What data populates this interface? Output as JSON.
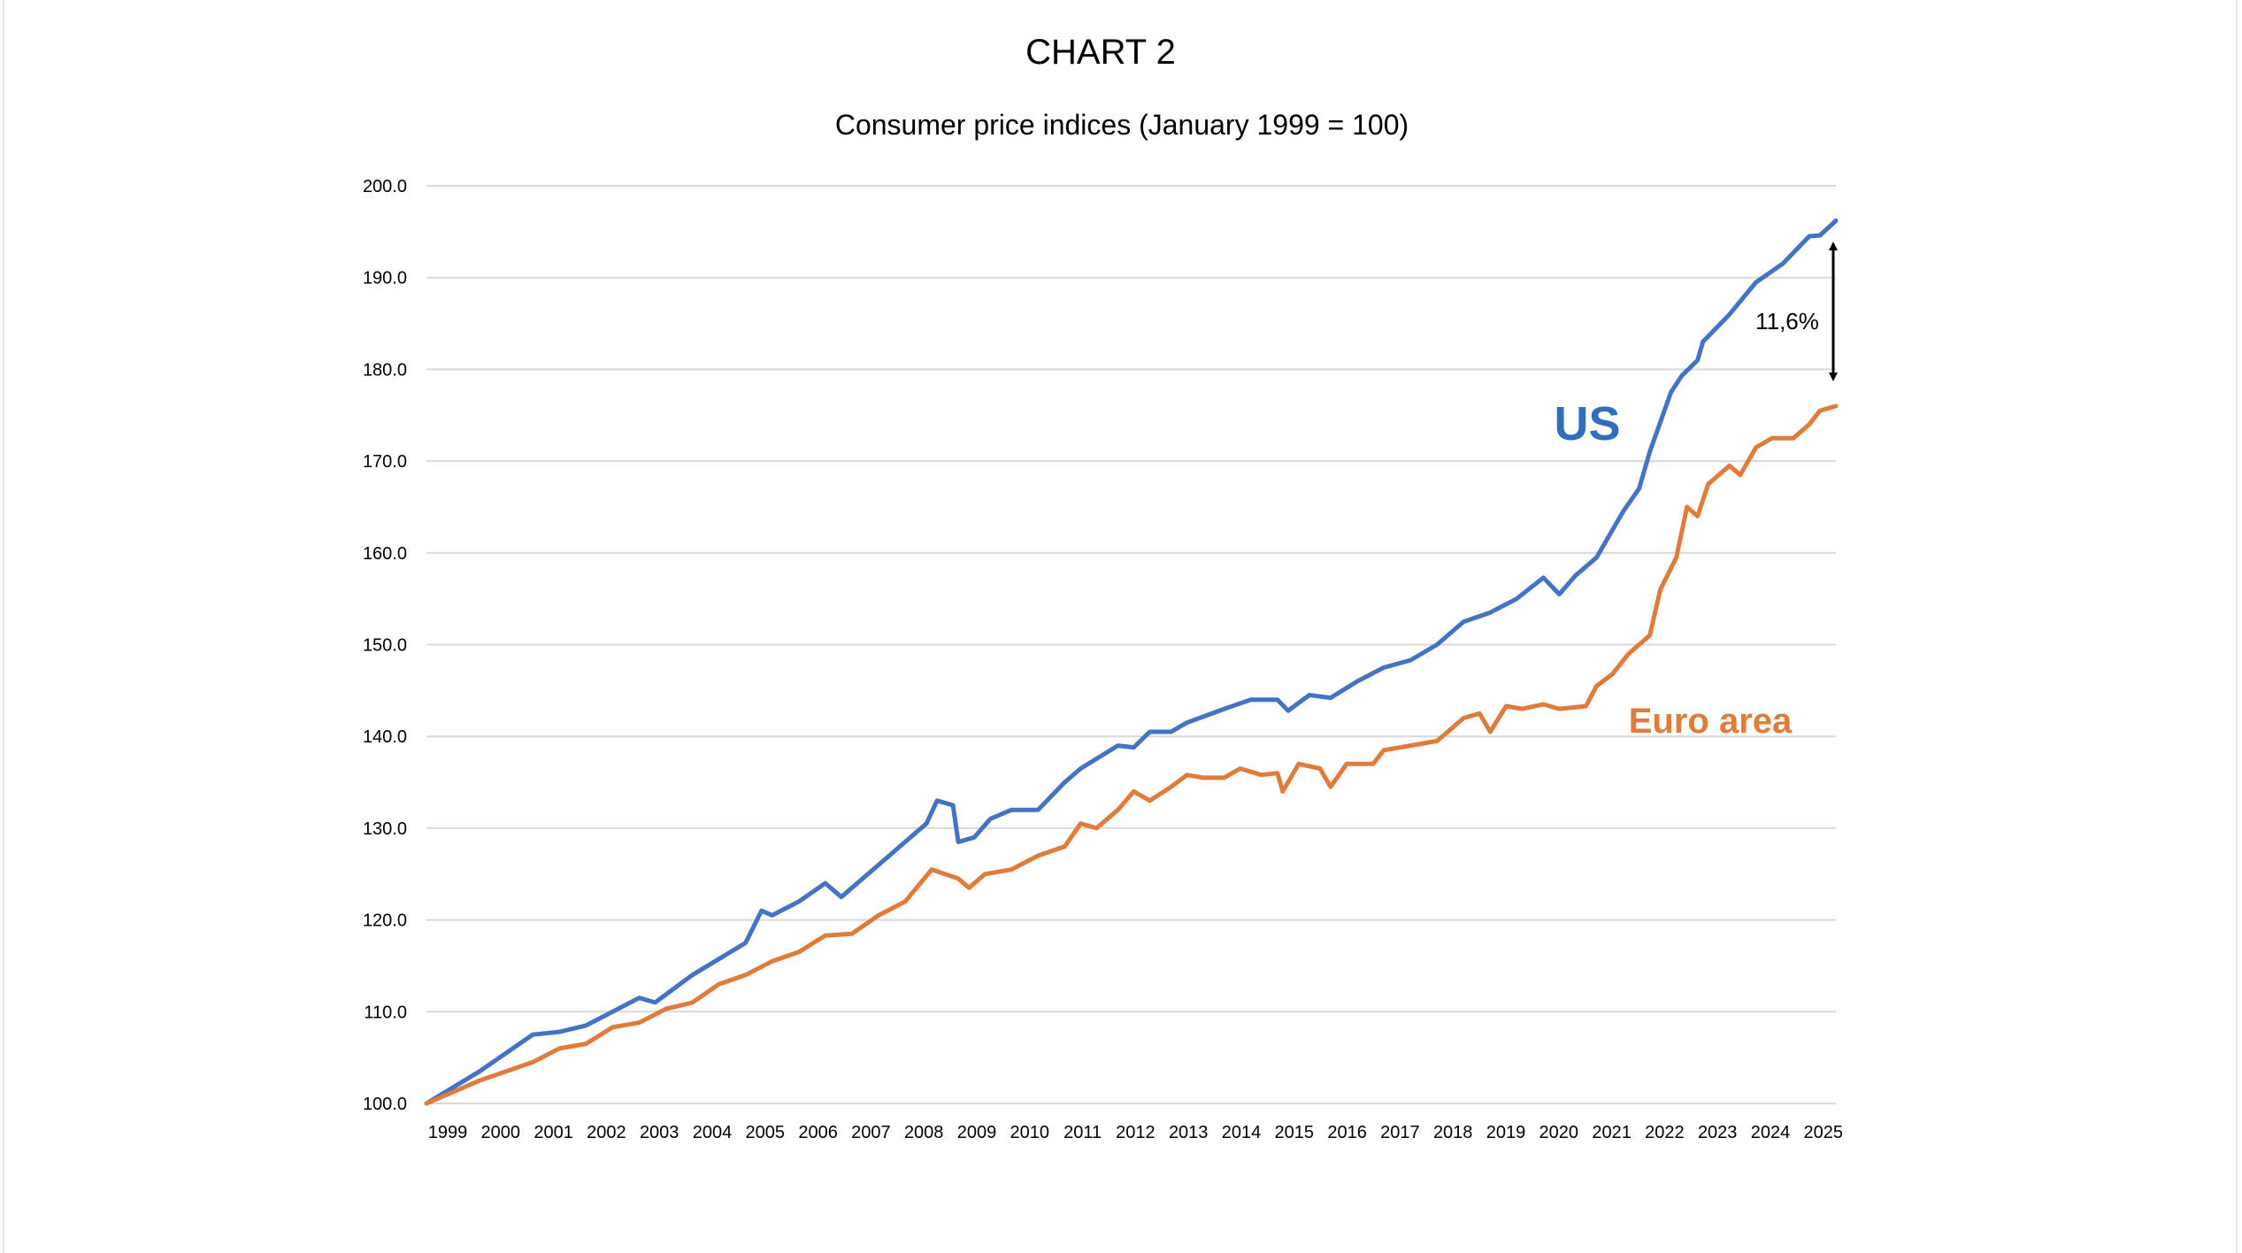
{
  "chart_data": {
    "type": "line",
    "title": "CHART 2",
    "subtitle": "Consumer price indices (January 1999 = 100)",
    "xlabel": "",
    "ylabel": "",
    "ylim": [
      100,
      200
    ],
    "xlim": [
      1999,
      2025.5
    ],
    "y_ticks": [
      "100.0",
      "110.0",
      "120.0",
      "130.0",
      "140.0",
      "150.0",
      "160.0",
      "170.0",
      "180.0",
      "190.0",
      "200.0"
    ],
    "x_ticks": [
      "1999",
      "2000",
      "2001",
      "2002",
      "2003",
      "2004",
      "2005",
      "2006",
      "2007",
      "2008",
      "2009",
      "2010",
      "2011",
      "2012",
      "2013",
      "2014",
      "2015",
      "2016",
      "2017",
      "2018",
      "2019",
      "2020",
      "2021",
      "2022",
      "2023",
      "2024",
      "2025"
    ],
    "grid": true,
    "legend": "inline labels",
    "series": [
      {
        "name": "US",
        "color": "#4472C4",
        "x": [
          1999,
          2000,
          2001,
          2001.5,
          2002,
          2003,
          2003.3,
          2004,
          2005,
          2005.3,
          2005.5,
          2006,
          2006.5,
          2006.8,
          2007,
          2007.5,
          2008,
          2008.4,
          2008.6,
          2008.9,
          2009,
          2009.3,
          2009.6,
          2010,
          2010.5,
          2011,
          2011.3,
          2012,
          2012.3,
          2012.6,
          2013,
          2013.3,
          2014,
          2014.5,
          2015,
          2015.2,
          2015.6,
          2016,
          2016.5,
          2017,
          2017.5,
          2018,
          2018.5,
          2019,
          2019.5,
          2020,
          2020.3,
          2020.6,
          2021,
          2021.5,
          2021.8,
          2022,
          2022.4,
          2022.6,
          2022.9,
          2023,
          2023.5,
          2024,
          2024.5,
          2025,
          2025.2,
          2025.5
        ],
        "values": [
          100,
          103.5,
          107.5,
          107.8,
          108.5,
          111.5,
          111,
          114,
          117.5,
          121,
          120.5,
          122,
          124,
          122.5,
          123.5,
          126,
          128.5,
          130.5,
          133,
          132.5,
          128.5,
          129,
          131,
          132,
          132,
          135,
          136.5,
          139,
          138.8,
          140.5,
          140.5,
          141.5,
          143,
          144,
          144,
          142.8,
          144.5,
          144.2,
          146,
          147.5,
          148.3,
          150,
          152.5,
          153.5,
          155,
          157.3,
          155.5,
          157.5,
          159.5,
          164.5,
          167,
          171,
          177.5,
          179.3,
          181,
          183,
          186,
          189.5,
          191.5,
          194.5,
          194.6,
          196.2
        ]
      },
      {
        "name": "Euro area",
        "color": "#E07B39",
        "x": [
          1999,
          2000,
          2001,
          2001.5,
          2002,
          2002.5,
          2003,
          2003.5,
          2004,
          2004.5,
          2005,
          2005.5,
          2006,
          2006.5,
          2007,
          2007.5,
          2008,
          2008.5,
          2009,
          2009.2,
          2009.5,
          2010,
          2010.5,
          2011,
          2011.3,
          2011.6,
          2012,
          2012.3,
          2012.6,
          2013,
          2013.3,
          2013.6,
          2014,
          2014.3,
          2014.7,
          2015,
          2015.1,
          2015.4,
          2015.8,
          2016,
          2016.3,
          2016.8,
          2017,
          2017.5,
          2018,
          2018.5,
          2018.8,
          2019,
          2019.3,
          2019.6,
          2020,
          2020.3,
          2020.8,
          2021,
          2021.3,
          2021.6,
          2022,
          2022.2,
          2022.5,
          2022.7,
          2022.9,
          2023.1,
          2023.5,
          2023.7,
          2024,
          2024.3,
          2024.7,
          2025,
          2025.2,
          2025.5
        ],
        "values": [
          100,
          102.5,
          104.5,
          106,
          106.5,
          108.3,
          108.8,
          110.3,
          111,
          113,
          114,
          115.5,
          116.5,
          118.3,
          118.5,
          120.5,
          122,
          125.5,
          124.5,
          123.5,
          125,
          125.5,
          127,
          128,
          130.5,
          130,
          132,
          134,
          133,
          134.5,
          135.8,
          135.5,
          135.5,
          136.5,
          135.8,
          136,
          134,
          137,
          136.5,
          134.5,
          137,
          137,
          138.5,
          139,
          139.5,
          142,
          142.5,
          140.5,
          143.3,
          143,
          143.5,
          143,
          143.3,
          145.5,
          146.8,
          149,
          151,
          156,
          159.5,
          165,
          164,
          167.5,
          169.5,
          168.5,
          171.5,
          172.5,
          172.5,
          174,
          175.5,
          176
        ]
      }
    ],
    "annotations": {
      "us_label": "US",
      "euro_label": "Euro area",
      "gap_label": "11,6%"
    }
  }
}
